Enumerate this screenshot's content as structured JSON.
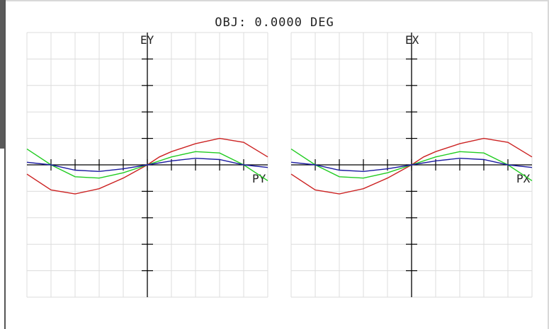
{
  "title": "OBJ: 0.0000 DEG",
  "colors": {
    "grid": "#dcdcdc",
    "axis": "#000000",
    "red": "#cc2222",
    "green": "#22cc22",
    "blue": "#1a1aa0"
  },
  "chart_data": [
    {
      "type": "line",
      "ylabel": "EY",
      "xlabel": "PY",
      "xlim": [
        -1,
        1
      ],
      "ylim": [
        -1,
        1
      ],
      "grid": true,
      "series": [
        {
          "color": "red",
          "x": [
            -1,
            -0.8,
            -0.6,
            -0.4,
            -0.2,
            0,
            0.1,
            0.2,
            0.4,
            0.6,
            0.8,
            1
          ],
          "y": [
            -0.07,
            -0.19,
            -0.22,
            -0.18,
            -0.1,
            0,
            0.06,
            0.1,
            0.16,
            0.2,
            0.17,
            0.06
          ]
        },
        {
          "color": "green",
          "x": [
            -1,
            -0.8,
            -0.6,
            -0.4,
            -0.2,
            0,
            0.2,
            0.4,
            0.6,
            0.8,
            1
          ],
          "y": [
            0.12,
            0.0,
            -0.09,
            -0.1,
            -0.06,
            0,
            0.06,
            0.1,
            0.09,
            0.0,
            -0.12
          ]
        },
        {
          "color": "blue",
          "x": [
            -1,
            -0.8,
            -0.6,
            -0.4,
            -0.2,
            0,
            0.2,
            0.4,
            0.6,
            0.8,
            1
          ],
          "y": [
            0.02,
            0.0,
            -0.04,
            -0.05,
            -0.03,
            0,
            0.03,
            0.05,
            0.04,
            0.0,
            -0.02
          ]
        }
      ]
    },
    {
      "type": "line",
      "ylabel": "EX",
      "xlabel": "PX",
      "xlim": [
        -1,
        1
      ],
      "ylim": [
        -1,
        1
      ],
      "grid": true,
      "series": [
        {
          "color": "red",
          "x": [
            -1,
            -0.8,
            -0.6,
            -0.4,
            -0.2,
            0,
            0.1,
            0.2,
            0.4,
            0.6,
            0.8,
            1
          ],
          "y": [
            -0.07,
            -0.19,
            -0.22,
            -0.18,
            -0.1,
            0,
            0.06,
            0.1,
            0.16,
            0.2,
            0.17,
            0.06
          ]
        },
        {
          "color": "green",
          "x": [
            -1,
            -0.8,
            -0.6,
            -0.4,
            -0.2,
            0,
            0.2,
            0.4,
            0.6,
            0.8,
            1
          ],
          "y": [
            0.12,
            0.0,
            -0.09,
            -0.1,
            -0.06,
            0,
            0.06,
            0.1,
            0.09,
            0.0,
            -0.12
          ]
        },
        {
          "color": "blue",
          "x": [
            -1,
            -0.8,
            -0.6,
            -0.4,
            -0.2,
            0,
            0.2,
            0.4,
            0.6,
            0.8,
            1
          ],
          "y": [
            0.02,
            0.0,
            -0.04,
            -0.05,
            -0.03,
            0,
            0.03,
            0.05,
            0.04,
            0.0,
            -0.02
          ]
        }
      ]
    }
  ]
}
